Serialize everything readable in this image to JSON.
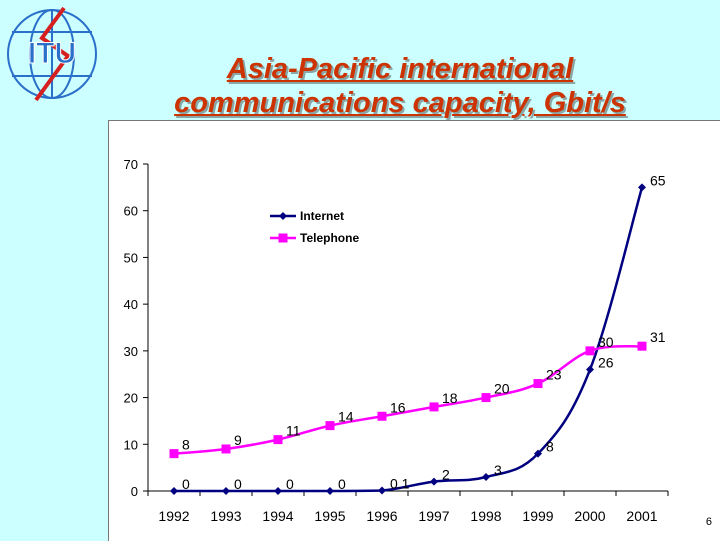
{
  "slide": {
    "logo_text": "ITU",
    "title_line1": "Asia-Pacific international",
    "title_line2": "communications capacity, Gbit/s",
    "slide_number": "6"
  },
  "colors": {
    "background": "#ccffff",
    "title": "#cc3300",
    "internet": "#000080",
    "telephone": "#ff00ff",
    "logo": "#2a6fc9",
    "logo_bolt": "#d62020"
  },
  "chart_data": {
    "type": "line",
    "title": "",
    "xlabel": "",
    "ylabel": "",
    "categories": [
      "1992",
      "1993",
      "1994",
      "1995",
      "1996",
      "1997",
      "1998",
      "1999",
      "2000",
      "2001"
    ],
    "ylim": [
      0,
      70
    ],
    "yticks": [
      0,
      10,
      20,
      30,
      40,
      50,
      60,
      70
    ],
    "grid": false,
    "legend_position": "top-left",
    "series": [
      {
        "name": "Internet",
        "values": [
          0,
          0,
          0,
          0,
          0.1,
          2,
          3,
          8,
          26,
          65
        ],
        "labels": [
          "0",
          "0",
          "0",
          "0",
          "0.1",
          "2",
          "3",
          "8",
          "26",
          "65"
        ],
        "marker": "diamond",
        "color": "#000080"
      },
      {
        "name": "Telephone",
        "values": [
          8,
          9,
          11,
          14,
          16,
          18,
          20,
          23,
          30,
          31
        ],
        "labels": [
          "8",
          "9",
          "11",
          "14",
          "16",
          "18",
          "20",
          "23",
          "30",
          "31"
        ],
        "marker": "square",
        "color": "#ff00ff"
      }
    ]
  }
}
